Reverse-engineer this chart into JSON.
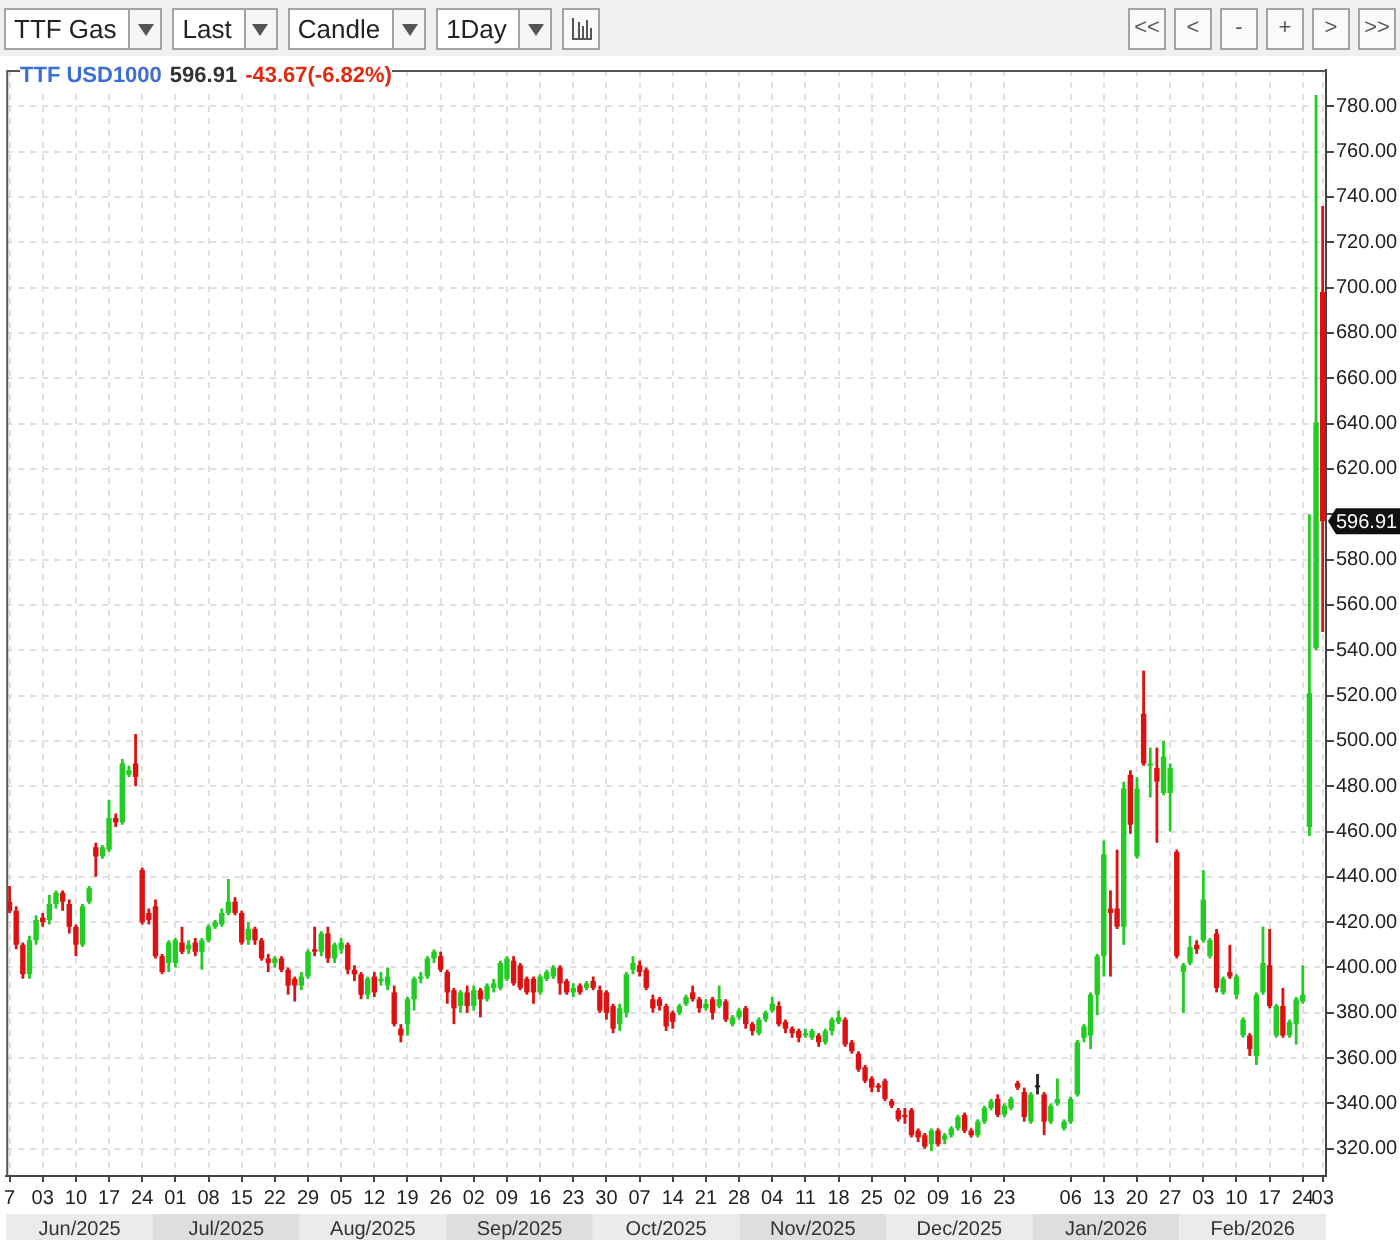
{
  "chart_data": {
    "type": "candlestick",
    "title": "TTF USD1000",
    "subtitle": "596.91 -43.67(-6.82%)",
    "categories": [
      "7",
      null,
      null,
      null,
      null,
      "03",
      null,
      null,
      null,
      null,
      "10",
      null,
      null,
      null,
      null,
      "17",
      null,
      null,
      null,
      null,
      "24",
      null,
      null,
      null,
      null,
      "01",
      null,
      null,
      null,
      null,
      "08",
      null,
      null,
      null,
      null,
      "15",
      null,
      null,
      null,
      null,
      "22",
      null,
      null,
      null,
      null,
      "29",
      null,
      null,
      null,
      null,
      "05",
      null,
      null,
      null,
      null,
      "12",
      null,
      null,
      null,
      null,
      "19",
      null,
      null,
      null,
      null,
      "26",
      null,
      null,
      null,
      null,
      "02",
      null,
      null,
      null,
      null,
      "09",
      null,
      null,
      null,
      null,
      "16",
      null,
      null,
      null,
      null,
      "23",
      null,
      null,
      null,
      null,
      "30",
      null,
      null,
      null,
      null,
      "07",
      null,
      null,
      null,
      null,
      "14",
      null,
      null,
      null,
      null,
      "21",
      null,
      null,
      null,
      null,
      "28",
      null,
      null,
      null,
      null,
      "04",
      null,
      null,
      null,
      null,
      "11",
      null,
      null,
      null,
      null,
      "18",
      null,
      null,
      null,
      null,
      "25",
      null,
      null,
      null,
      null,
      "02",
      null,
      null,
      null,
      null,
      "09",
      null,
      null,
      null,
      null,
      "16",
      null,
      null,
      null,
      null,
      "23",
      null,
      null,
      null,
      null,
      null,
      null,
      null,
      null,
      null,
      "06",
      null,
      null,
      null,
      null,
      "13",
      null,
      null,
      null,
      null,
      "20",
      null,
      null,
      null,
      null,
      "27",
      null,
      null,
      null,
      null,
      "03",
      null,
      null,
      null,
      null,
      "10",
      null,
      null,
      null,
      null,
      "17",
      null,
      null,
      null,
      null,
      "24",
      null,
      null,
      "03"
    ],
    "ohlc": [
      [
        429,
        436,
        424,
        425
      ],
      [
        425,
        427,
        408,
        410
      ],
      [
        410,
        411,
        395,
        397
      ],
      [
        397,
        414,
        395,
        412
      ],
      [
        412,
        423,
        410,
        421
      ],
      [
        422,
        424,
        418,
        420
      ],
      [
        421,
        432,
        419,
        428
      ],
      [
        428,
        434,
        426,
        433
      ],
      [
        433,
        434,
        425,
        429
      ],
      [
        428,
        430,
        415,
        418
      ],
      [
        418,
        419,
        405,
        410
      ],
      [
        410,
        428,
        409,
        427
      ],
      [
        429,
        436,
        428,
        435
      ],
      [
        453,
        455,
        440,
        449
      ],
      [
        449,
        454,
        448,
        453
      ],
      [
        452,
        474,
        451,
        466
      ],
      [
        466,
        468,
        462,
        464
      ],
      [
        464,
        492,
        463,
        490
      ],
      [
        485,
        489,
        484,
        487
      ],
      [
        490,
        503,
        480,
        484
      ],
      [
        443,
        444,
        419,
        420
      ],
      [
        424,
        426,
        419,
        421
      ],
      [
        427,
        430,
        404,
        405
      ],
      [
        405,
        406,
        397,
        398
      ],
      [
        402,
        412,
        398,
        411
      ],
      [
        402,
        413,
        400,
        412
      ],
      [
        411,
        418,
        406,
        407
      ],
      [
        408,
        412,
        406,
        410
      ],
      [
        411,
        413,
        405,
        407
      ],
      [
        407,
        413,
        399,
        412
      ],
      [
        412,
        419,
        411,
        418
      ],
      [
        418,
        421,
        417,
        420
      ],
      [
        419,
        426,
        418,
        424
      ],
      [
        424,
        439,
        423,
        429
      ],
      [
        429,
        431,
        423,
        424
      ],
      [
        424,
        425,
        410,
        411
      ],
      [
        412,
        420,
        410,
        417
      ],
      [
        417,
        418,
        410,
        412
      ],
      [
        412,
        413,
        403,
        404
      ],
      [
        404,
        406,
        398,
        402
      ],
      [
        402,
        405,
        400,
        404
      ],
      [
        404,
        405,
        398,
        399
      ],
      [
        399,
        400,
        388,
        392
      ],
      [
        395,
        396,
        385,
        392
      ],
      [
        392,
        398,
        390,
        396
      ],
      [
        396,
        408,
        395,
        407
      ],
      [
        408,
        418,
        405,
        407
      ],
      [
        407,
        416,
        405,
        415
      ],
      [
        415,
        418,
        402,
        404
      ],
      [
        404,
        411,
        402,
        410
      ],
      [
        408,
        413,
        406,
        411
      ],
      [
        410,
        411,
        397,
        399
      ],
      [
        399,
        401,
        394,
        397
      ],
      [
        397,
        398,
        386,
        388
      ],
      [
        388,
        396,
        386,
        395
      ],
      [
        396,
        398,
        387,
        389
      ],
      [
        394,
        398,
        392,
        395
      ],
      [
        392,
        400,
        390,
        396
      ],
      [
        389,
        392,
        374,
        375
      ],
      [
        373,
        375,
        367,
        370
      ],
      [
        375,
        387,
        370,
        386
      ],
      [
        386,
        396,
        381,
        395
      ],
      [
        395,
        398,
        393,
        396
      ],
      [
        396,
        405,
        395,
        404
      ],
      [
        404,
        408,
        402,
        407
      ],
      [
        405,
        407,
        398,
        399
      ],
      [
        398,
        399,
        384,
        389
      ],
      [
        390,
        391,
        375,
        382
      ],
      [
        383,
        390,
        380,
        389
      ],
      [
        389,
        392,
        380,
        383
      ],
      [
        383,
        392,
        381,
        390
      ],
      [
        390,
        391,
        378,
        386
      ],
      [
        386,
        393,
        385,
        392
      ],
      [
        391,
        395,
        389,
        393
      ],
      [
        391,
        403,
        390,
        402
      ],
      [
        395,
        405,
        394,
        404
      ],
      [
        403,
        405,
        392,
        393
      ],
      [
        401,
        402,
        390,
        391
      ],
      [
        395,
        396,
        388,
        389
      ],
      [
        395,
        396,
        384,
        389
      ],
      [
        389,
        397,
        388,
        396
      ],
      [
        395,
        399,
        394,
        398
      ],
      [
        396,
        401,
        395,
        400
      ],
      [
        400,
        401,
        388,
        393
      ],
      [
        394,
        395,
        388,
        389
      ],
      [
        389,
        393,
        387,
        391
      ],
      [
        392,
        393,
        388,
        389
      ],
      [
        391,
        394,
        390,
        393
      ],
      [
        394,
        396,
        390,
        391
      ],
      [
        390,
        392,
        380,
        381
      ],
      [
        389,
        390,
        377,
        380
      ],
      [
        383,
        384,
        371,
        373
      ],
      [
        375,
        384,
        372,
        382
      ],
      [
        380,
        398,
        378,
        397
      ],
      [
        399,
        405,
        397,
        402
      ],
      [
        401,
        403,
        396,
        398
      ],
      [
        399,
        400,
        390,
        391
      ],
      [
        386,
        388,
        380,
        382
      ],
      [
        386,
        387,
        381,
        383
      ],
      [
        383,
        384,
        372,
        374
      ],
      [
        380,
        381,
        373,
        376
      ],
      [
        380,
        384,
        379,
        383
      ],
      [
        384,
        388,
        383,
        387
      ],
      [
        389,
        392,
        385,
        386
      ],
      [
        386,
        387,
        380,
        382
      ],
      [
        382,
        386,
        381,
        384
      ],
      [
        386,
        387,
        377,
        380
      ],
      [
        383,
        392,
        382,
        386
      ],
      [
        385,
        386,
        376,
        377
      ],
      [
        375,
        379,
        374,
        378
      ],
      [
        378,
        382,
        377,
        381
      ],
      [
        382,
        383,
        373,
        375
      ],
      [
        375,
        376,
        370,
        372
      ],
      [
        371,
        378,
        370,
        377
      ],
      [
        377,
        381,
        376,
        380
      ],
      [
        381,
        387,
        380,
        384
      ],
      [
        383,
        385,
        374,
        375
      ],
      [
        376,
        377,
        371,
        373
      ],
      [
        373,
        374,
        369,
        371
      ],
      [
        372,
        373,
        367,
        369
      ],
      [
        370,
        373,
        369,
        371
      ],
      [
        369,
        373,
        368,
        372
      ],
      [
        370,
        371,
        365,
        367
      ],
      [
        367,
        373,
        366,
        372
      ],
      [
        372,
        378,
        370,
        377
      ],
      [
        376,
        381,
        375,
        378
      ],
      [
        377,
        378,
        365,
        366
      ],
      [
        367,
        368,
        362,
        363
      ],
      [
        362,
        363,
        354,
        355
      ],
      [
        356,
        357,
        349,
        350
      ],
      [
        351,
        352,
        345,
        347
      ],
      [
        348,
        349,
        345,
        347
      ],
      [
        350,
        351,
        341,
        342
      ],
      [
        341,
        342,
        338,
        339
      ],
      [
        337,
        338,
        332,
        333
      ],
      [
        335,
        338,
        331,
        334
      ],
      [
        337,
        338,
        325,
        326
      ],
      [
        328,
        329,
        323,
        325
      ],
      [
        326,
        327,
        320,
        321
      ],
      [
        322,
        329,
        319,
        328
      ],
      [
        328,
        329,
        321,
        322
      ],
      [
        324,
        327,
        322,
        326
      ],
      [
        326,
        330,
        325,
        329
      ],
      [
        329,
        335,
        328,
        334
      ],
      [
        335,
        336,
        327,
        328
      ],
      [
        328,
        329,
        325,
        326
      ],
      [
        326,
        333,
        325,
        332
      ],
      [
        332,
        339,
        331,
        338
      ],
      [
        338,
        342,
        337,
        341
      ],
      [
        342,
        344,
        334,
        335
      ],
      [
        335,
        340,
        334,
        339
      ],
      [
        338,
        343,
        337,
        342
      ],
      [
        349,
        350,
        346,
        347
      ],
      [
        345,
        347,
        332,
        334
      ],
      [
        332,
        345,
        331,
        344
      ],
      [
        348,
        353,
        344,
        348
      ],
      [
        344,
        345,
        326,
        332
      ],
      [
        332,
        340,
        331,
        339
      ],
      [
        340,
        351,
        339,
        342
      ],
      [
        329,
        333,
        328,
        332
      ],
      [
        332,
        343,
        331,
        342
      ],
      [
        344,
        368,
        343,
        367
      ],
      [
        369,
        375,
        367,
        374
      ],
      [
        370,
        389,
        364,
        388
      ],
      [
        388,
        406,
        379,
        405
      ],
      [
        405,
        456,
        396,
        450
      ],
      [
        426,
        434,
        396,
        424
      ],
      [
        426,
        452,
        417,
        418
      ],
      [
        418,
        482,
        410,
        479
      ],
      [
        485,
        487,
        459,
        463
      ],
      [
        449,
        484,
        448,
        479
      ],
      [
        512,
        531,
        489,
        490
      ],
      [
        489,
        497,
        475,
        490
      ],
      [
        488,
        497,
        455,
        482
      ],
      [
        477,
        500,
        476,
        493
      ],
      [
        477,
        490,
        460,
        488
      ],
      [
        451,
        452,
        404,
        405
      ],
      [
        398,
        402,
        380,
        401
      ],
      [
        402,
        414,
        401,
        409
      ],
      [
        410,
        412,
        406,
        408
      ],
      [
        412,
        443,
        411,
        430
      ],
      [
        405,
        413,
        404,
        412
      ],
      [
        415,
        417,
        389,
        391
      ],
      [
        389,
        396,
        388,
        395
      ],
      [
        398,
        410,
        395,
        396
      ],
      [
        388,
        397,
        386,
        396
      ],
      [
        370,
        378,
        369,
        377
      ],
      [
        370,
        371,
        361,
        364
      ],
      [
        361,
        389,
        357,
        388
      ],
      [
        389,
        418,
        388,
        402
      ],
      [
        401,
        417,
        382,
        383
      ],
      [
        370,
        384,
        369,
        383
      ],
      [
        383,
        391,
        369,
        370
      ],
      [
        370,
        377,
        369,
        376
      ],
      [
        375,
        387,
        366,
        386
      ],
      [
        385,
        401,
        384,
        388
      ],
      [
        462,
        600,
        458,
        521
      ],
      [
        541,
        785,
        540,
        640.58
      ],
      [
        698,
        736,
        548,
        596.91
      ]
    ],
    "colors": [
      "#dd1111",
      "#dd1111",
      "#dd1111",
      "#22cc22",
      "#22cc22",
      "#dd1111",
      "#22cc22",
      "#22cc22",
      "#dd1111",
      "#dd1111",
      "#dd1111",
      "#22cc22",
      "#22cc22",
      "#dd1111",
      "#22cc22",
      "#22cc22",
      "#dd1111",
      "#22cc22",
      "#22cc22",
      "#dd1111",
      "#dd1111",
      "#dd1111",
      "#dd1111",
      "#dd1111",
      "#22cc22",
      "#22cc22",
      "#dd1111",
      "#22cc22",
      "#dd1111",
      "#22cc22",
      "#22cc22",
      "#22cc22",
      "#22cc22",
      "#22cc22",
      "#dd1111",
      "#dd1111",
      "#22cc22",
      "#dd1111",
      "#dd1111",
      "#dd1111",
      "#22cc22",
      "#dd1111",
      "#dd1111",
      "#dd1111",
      "#22cc22",
      "#22cc22",
      "#dd1111",
      "#22cc22",
      "#dd1111",
      "#22cc22",
      "#22cc22",
      "#dd1111",
      "#dd1111",
      "#dd1111",
      "#22cc22",
      "#dd1111",
      "#22cc22",
      "#22cc22",
      "#dd1111",
      "#dd1111",
      "#22cc22",
      "#22cc22",
      "#22cc22",
      "#22cc22",
      "#22cc22",
      "#dd1111",
      "#dd1111",
      "#dd1111",
      "#22cc22",
      "#dd1111",
      "#22cc22",
      "#dd1111",
      "#22cc22",
      "#22cc22",
      "#22cc22",
      "#22cc22",
      "#dd1111",
      "#dd1111",
      "#dd1111",
      "#dd1111",
      "#22cc22",
      "#22cc22",
      "#22cc22",
      "#dd1111",
      "#dd1111",
      "#22cc22",
      "#dd1111",
      "#22cc22",
      "#dd1111",
      "#dd1111",
      "#dd1111",
      "#dd1111",
      "#22cc22",
      "#22cc22",
      "#22cc22",
      "#dd1111",
      "#dd1111",
      "#dd1111",
      "#dd1111",
      "#dd1111",
      "#dd1111",
      "#22cc22",
      "#22cc22",
      "#dd1111",
      "#dd1111",
      "#22cc22",
      "#dd1111",
      "#22cc22",
      "#dd1111",
      "#22cc22",
      "#22cc22",
      "#dd1111",
      "#dd1111",
      "#22cc22",
      "#22cc22",
      "#22cc22",
      "#dd1111",
      "#dd1111",
      "#dd1111",
      "#dd1111",
      "#22cc22",
      "#22cc22",
      "#dd1111",
      "#22cc22",
      "#22cc22",
      "#22cc22",
      "#dd1111",
      "#dd1111",
      "#dd1111",
      "#dd1111",
      "#dd1111",
      "#dd1111",
      "#dd1111",
      "#dd1111",
      "#dd1111",
      "#dd1111",
      "#dd1111",
      "#dd1111",
      "#dd1111",
      "#22cc22",
      "#dd1111",
      "#22cc22",
      "#22cc22",
      "#22cc22",
      "#dd1111",
      "#dd1111",
      "#22cc22",
      "#22cc22",
      "#22cc22",
      "#dd1111",
      "#22cc22",
      "#22cc22",
      "#dd1111",
      "#dd1111",
      "#22cc22",
      "#222222",
      "#dd1111",
      "#22cc22",
      "#22cc22",
      "#22cc22",
      "#22cc22",
      "#22cc22",
      "#22cc22",
      "#22cc22",
      "#22cc22",
      "#22cc22",
      "#dd1111",
      "#dd1111",
      "#22cc22",
      "#dd1111",
      "#22cc22",
      "#dd1111",
      "#22cc22",
      "#dd1111",
      "#22cc22",
      "#22cc22",
      "#dd1111",
      "#22cc22",
      "#22cc22",
      "#dd1111",
      "#22cc22",
      "#22cc22",
      "#dd1111",
      "#22cc22",
      "#dd1111",
      "#22cc22",
      "#22cc22",
      "#dd1111",
      "#22cc22",
      "#22cc22",
      "#dd1111",
      "#22cc22",
      "#dd1111",
      "#22cc22",
      "#22cc22",
      "#22cc22",
      "#22cc22",
      "#22cc22",
      "#dd1111"
    ],
    "ylim": [
      308,
      796
    ],
    "yticks": [
      {
        "value": 320,
        "label": "320.00"
      },
      {
        "value": 340,
        "label": "340.00"
      },
      {
        "value": 360,
        "label": "360.00"
      },
      {
        "value": 380,
        "label": "380.00"
      },
      {
        "value": 400,
        "label": "400.00"
      },
      {
        "value": 420,
        "label": "420.00"
      },
      {
        "value": 440,
        "label": "440.00"
      },
      {
        "value": 460,
        "label": "460.00"
      },
      {
        "value": 480,
        "label": "480.00"
      },
      {
        "value": 500,
        "label": "500.00"
      },
      {
        "value": 520,
        "label": "520.00"
      },
      {
        "value": 540,
        "label": "540.00"
      },
      {
        "value": 560,
        "label": "560.00"
      },
      {
        "value": 580,
        "label": "580.00"
      },
      {
        "value": 600,
        "label": null
      },
      {
        "value": 620,
        "label": "620.00"
      },
      {
        "value": 640,
        "label": "640.00"
      },
      {
        "value": 660,
        "label": "660.00"
      },
      {
        "value": 680,
        "label": "680.00"
      },
      {
        "value": 700,
        "label": "700.00"
      },
      {
        "value": 720,
        "label": "720.00"
      },
      {
        "value": 740,
        "label": "740.00"
      },
      {
        "value": 760,
        "label": "760.00"
      },
      {
        "value": 780,
        "label": "780.00"
      }
    ],
    "grid": true,
    "annotations": [
      "TTF Gas",
      "Last",
      "Candle",
      "1Day",
      "<<",
      "<",
      "-",
      "+",
      ">",
      ">>",
      "Jun/2025",
      "Jul/2025",
      "Aug/2025",
      "Sep/2025",
      "Oct/2025",
      "Nov/2025",
      "Dec/2025",
      "Jan/2026",
      "Feb/2026",
      {
        "text": "596.91",
        "y": 596.91
      }
    ]
  }
}
